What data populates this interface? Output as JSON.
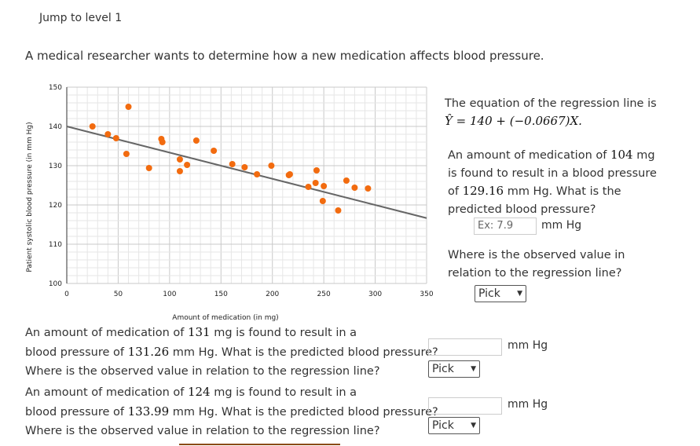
{
  "header": {
    "jump": "Jump to level 1"
  },
  "intro": "A medical researcher wants to determine how a new medication affects blood pressure.",
  "chart_data": {
    "type": "scatter",
    "xlabel": "Amount of medication (in mg)",
    "ylabel": "Patient systolic blood pressure (in mm Hg)",
    "xlim": [
      0,
      350
    ],
    "ylim": [
      100,
      150
    ],
    "xticks": [
      0,
      50,
      100,
      150,
      200,
      250,
      300,
      350
    ],
    "yticks": [
      100,
      110,
      120,
      130,
      140,
      150
    ],
    "grid": true,
    "point_color": "#f26b0f",
    "line_color": "#666666",
    "points": [
      [
        25,
        140
      ],
      [
        60,
        145
      ],
      [
        40,
        138
      ],
      [
        48,
        137
      ],
      [
        58,
        133
      ],
      [
        80,
        129.4
      ],
      [
        92,
        136.8
      ],
      [
        93,
        136
      ],
      [
        110,
        131.6
      ],
      [
        110,
        128.6
      ],
      [
        117,
        130.2
      ],
      [
        126,
        136.4
      ],
      [
        143,
        133.8
      ],
      [
        161,
        130.4
      ],
      [
        173,
        129.6
      ],
      [
        185,
        127.8
      ],
      [
        199,
        130
      ],
      [
        216,
        127.6
      ],
      [
        217,
        127.8
      ],
      [
        235,
        124.6
      ],
      [
        242,
        125.6
      ],
      [
        243,
        128.8
      ],
      [
        250,
        124.8
      ],
      [
        249,
        121
      ],
      [
        264,
        118.6
      ],
      [
        272,
        126.2
      ],
      [
        280,
        124.4
      ],
      [
        293,
        124.2
      ]
    ],
    "regression": {
      "intercept": 140,
      "slope": -0.0667
    }
  },
  "side": {
    "eq_text": "The equation of the regression line is",
    "eq": "Ŷ = 140 + (−0.0667)X.",
    "q1a": "An amount of medication of ",
    "q1mg": "104",
    "q1b": " mg",
    "q1c": "is found to result in a blood pressure",
    "q1d": "of ",
    "q1bp": "129.16",
    "q1e": " mm Hg. What is the",
    "q1f": "predicted blood pressure?",
    "placeholder": "Ex: 7.9",
    "unit": "mm Hg",
    "q2a": "Where is the observed value in",
    "q2b": "relation to the regression line?",
    "pick": "Pick"
  },
  "q2": {
    "a": "An amount of medication of ",
    "mg": "131",
    "b": " mg is found to result in a",
    "c": "blood pressure of ",
    "bp": "131.26",
    "d": " mm Hg. What is the predicted blood pressure?",
    "e": "Where is the observed value in relation to the regression line?",
    "unit": "mm Hg",
    "pick": "Pick"
  },
  "q3": {
    "a": "An amount of medication of ",
    "mg": "124",
    "b": " mg is found to result in a",
    "c": "blood pressure of ",
    "bp": "133.99",
    "d": " mm Hg. What is the predicted blood pressure?",
    "e": "Where is the observed value in relation to the regression line?",
    "unit": "mm Hg",
    "pick": "Pick"
  }
}
